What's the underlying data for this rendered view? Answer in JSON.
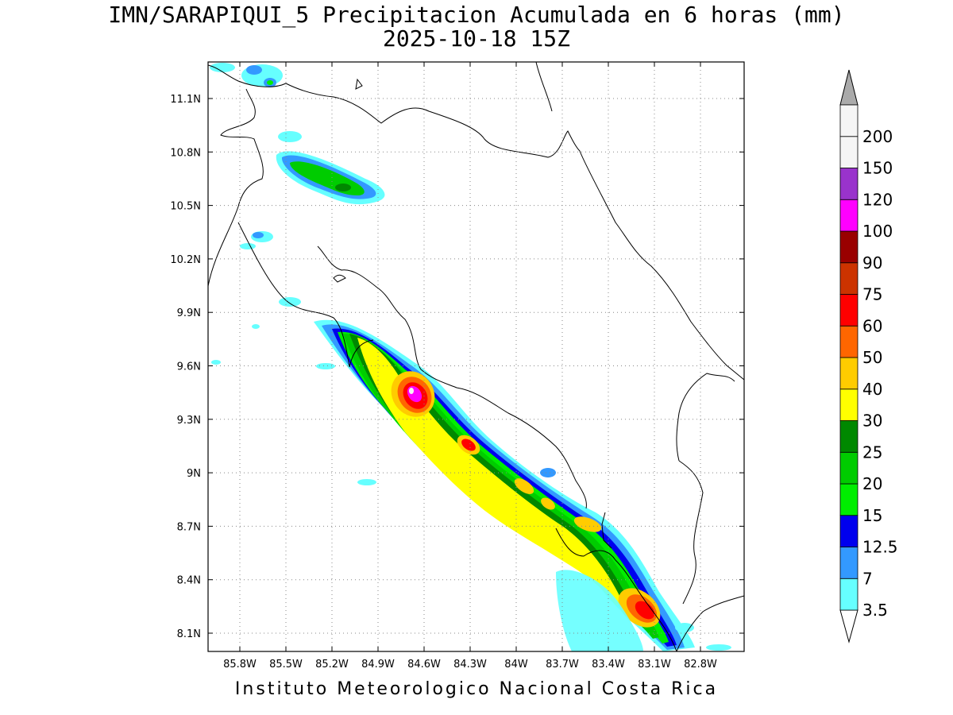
{
  "title": {
    "line1": "IMN/SARAPIQUI_5 Precipitacion Acumulada en 6 horas (mm)",
    "line2": "2025-10-18 15Z"
  },
  "footer": "Instituto Meteorologico Nacional Costa Rica",
  "map": {
    "lon_ticks": [
      "85.8W",
      "85.5W",
      "85.2W",
      "84.9W",
      "84.6W",
      "84.3W",
      "84W",
      "83.7W",
      "83.4W",
      "83.1W",
      "82.8W"
    ],
    "lat_ticks": [
      "11.1N",
      "10.8N",
      "10.5N",
      "10.2N",
      "9.9N",
      "9.6N",
      "9.3N",
      "9N",
      "8.7N",
      "8.4N",
      "8.1N"
    ],
    "grid": "dotted"
  },
  "colorbar": {
    "levels": [
      "3.5",
      "7",
      "12.5",
      "15",
      "20",
      "25",
      "30",
      "40",
      "50",
      "60",
      "75",
      "90",
      "100",
      "120",
      "150",
      "200"
    ],
    "colors": [
      "#66ffff",
      "#3399ff",
      "#0000ee",
      "#00ee00",
      "#00cc00",
      "#008800",
      "#ffff00",
      "#ffcc00",
      "#ff6600",
      "#ff0000",
      "#cc3300",
      "#990000",
      "#ff00ff",
      "#9933cc",
      "#f5f5f5",
      "#aaaaaa"
    ],
    "extend": "both"
  }
}
